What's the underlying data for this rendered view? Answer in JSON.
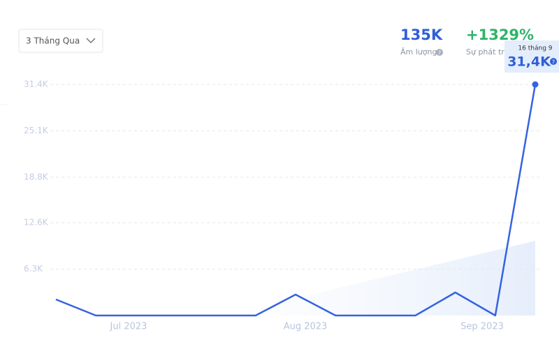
{
  "header": {
    "range_select": "3 Tháng Qua",
    "stats": [
      {
        "value": "135K",
        "label": "Âm lượng"
      },
      {
        "value": "+1329%",
        "label": "Sự phát triển"
      }
    ]
  },
  "chart_data": {
    "type": "line",
    "categories": [
      null,
      null,
      null,
      null,
      null,
      null,
      null,
      null,
      null,
      null,
      null,
      null,
      "16 tháng 9"
    ],
    "x_axis_labels": [
      "Jul 2023",
      "Aug 2023",
      "Sep 2023"
    ],
    "series": [
      {
        "name": "Âm lượng",
        "color": "#3563e0",
        "values": [
          2180,
          0,
          0,
          0,
          0,
          0,
          2850,
          0,
          0,
          0,
          3130,
          0,
          31400
        ],
        "value_labels": [
          null,
          null,
          null,
          null,
          null,
          null,
          null,
          null,
          null,
          null,
          null,
          null,
          "31,4K"
        ]
      }
    ],
    "ylim": [
      0,
      33000
    ],
    "yticks": [
      {
        "value": 6300,
        "label": "6.3K"
      },
      {
        "value": 12600,
        "label": "12.6K"
      },
      {
        "value": 18800,
        "label": "18.8K"
      },
      {
        "value": 25100,
        "label": "25.1K"
      },
      {
        "value": 31400,
        "label": "31.4K"
      }
    ],
    "grid": true
  }
}
